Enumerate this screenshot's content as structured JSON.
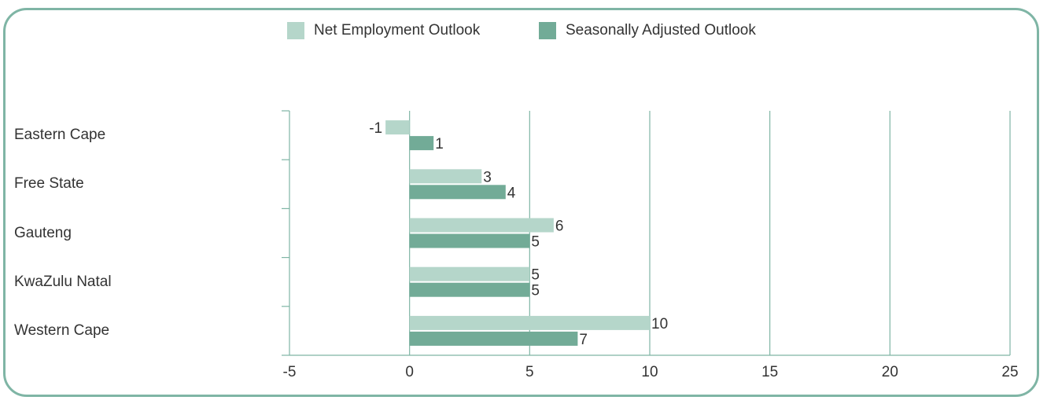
{
  "chart_data": {
    "type": "bar",
    "orientation": "horizontal",
    "categories": [
      "Eastern Cape",
      "Free State",
      "Gauteng",
      "KwaZulu Natal",
      "Western Cape"
    ],
    "series": [
      {
        "name": "Net Employment Outlook",
        "values": [
          -1,
          3,
          6,
          5,
          10
        ],
        "color": "#b5d6ca"
      },
      {
        "name": "Seasonally Adjusted Outlook",
        "values": [
          1,
          4,
          5,
          5,
          7
        ],
        "color": "#72ab97"
      }
    ],
    "xlim": [
      -5,
      25
    ],
    "xticks": [
      -5,
      0,
      5,
      10,
      15,
      20,
      25
    ],
    "grid": true,
    "legend": "top-center",
    "title": "",
    "xlabel": "",
    "ylabel": ""
  },
  "colors": {
    "frame": "#7fb5a5",
    "gridline": "#7fb5a5",
    "text": "#333333"
  }
}
